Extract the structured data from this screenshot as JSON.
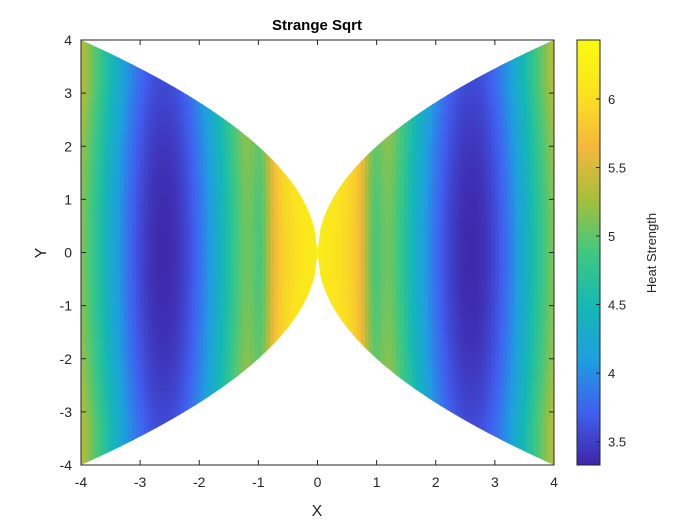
{
  "chart_data": {
    "type": "heatmap",
    "title": "Strange Sqrt",
    "xlabel": "X",
    "ylabel": "Y",
    "colorbar_label": "Heat Strength",
    "xlim": [
      -4,
      4
    ],
    "ylim": [
      -4,
      4
    ],
    "xticks": [
      -4,
      -3,
      -2,
      -1,
      0,
      1,
      2,
      3,
      4
    ],
    "yticks": [
      -4,
      -3,
      -2,
      -1,
      0,
      1,
      2,
      3,
      4
    ],
    "xtick_labels": [
      "-4",
      "-3",
      "-2",
      "-1",
      "0",
      "1",
      "2",
      "3",
      "4"
    ],
    "ytick_labels": [
      "-4",
      "-3",
      "-2",
      "-1",
      "0",
      "1",
      "2",
      "3",
      "4"
    ],
    "colorbar_range": [
      3.33,
      6.43
    ],
    "colorbar_ticks": [
      3.5,
      4,
      4.5,
      5,
      5.5,
      6
    ],
    "colorbar_tick_labels": [
      "3.5",
      "4",
      "4.5",
      "5",
      "5.5",
      "6"
    ],
    "colormap": "parula",
    "colormap_stops": [
      "#3e26a8",
      "#4060f0",
      "#1e9fdf",
      "#15b8b4",
      "#40c880",
      "#a6bf3c",
      "#f5b73c",
      "#fbe31f",
      "#f9fb0e"
    ],
    "grid": false,
    "region_boundary": "|y| <= 2*sqrt(|x|)",
    "values_description": "Minimum about 3.4 near (±2.6, 0); maximum about 6.3 near (±0.3, 0); roughly constant along Y, varies with X"
  }
}
